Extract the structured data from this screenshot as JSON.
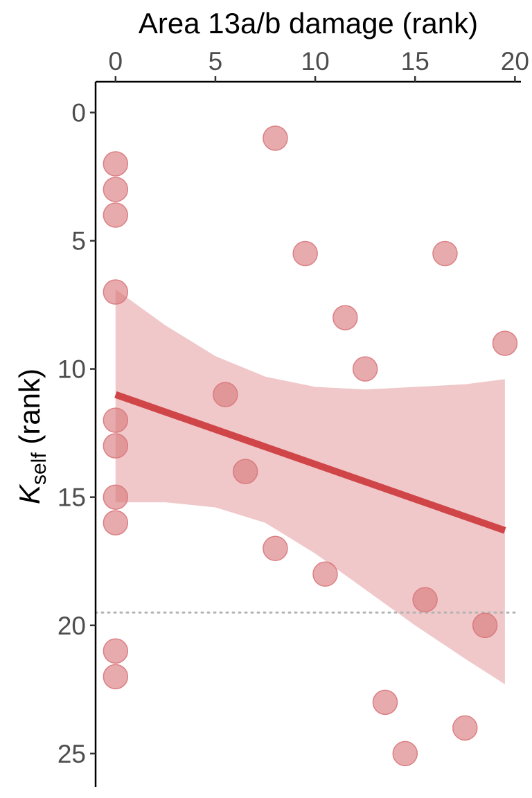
{
  "chart_data": {
    "type": "scatter",
    "title": "",
    "xlabel": "Area 13a/b damage (rank)",
    "ylabel_main": "K",
    "ylabel_sub": "self",
    "ylabel_suffix": " (rank)",
    "x_axis_position": "top",
    "y_axis_reversed": true,
    "xlim": [
      -1,
      20.3
    ],
    "ylim": [
      -1.2,
      26.3
    ],
    "x_ticks": [
      0,
      5,
      10,
      15,
      20
    ],
    "y_ticks": [
      0,
      5,
      10,
      15,
      20,
      25
    ],
    "grid": false,
    "colors": {
      "point": "#d9777b",
      "fit_line": "#cf4548",
      "band": "#f0c8c9",
      "reference_line": "#b3b3b3"
    },
    "points": [
      {
        "x": 0,
        "y": 2
      },
      {
        "x": 0,
        "y": 3
      },
      {
        "x": 0,
        "y": 4
      },
      {
        "x": 0,
        "y": 7
      },
      {
        "x": 0,
        "y": 12
      },
      {
        "x": 0,
        "y": 13
      },
      {
        "x": 0,
        "y": 15
      },
      {
        "x": 0,
        "y": 16
      },
      {
        "x": 0,
        "y": 21
      },
      {
        "x": 0,
        "y": 22
      },
      {
        "x": 5.5,
        "y": 11
      },
      {
        "x": 6.5,
        "y": 14
      },
      {
        "x": 8,
        "y": 1
      },
      {
        "x": 8,
        "y": 17
      },
      {
        "x": 9.5,
        "y": 5.5
      },
      {
        "x": 10.5,
        "y": 18
      },
      {
        "x": 11.5,
        "y": 8
      },
      {
        "x": 12.5,
        "y": 10
      },
      {
        "x": 13.5,
        "y": 23
      },
      {
        "x": 14.5,
        "y": 25
      },
      {
        "x": 15.5,
        "y": 19
      },
      {
        "x": 16.5,
        "y": 5.5
      },
      {
        "x": 17.5,
        "y": 24
      },
      {
        "x": 18.5,
        "y": 20
      },
      {
        "x": 19.5,
        "y": 9
      }
    ],
    "fit_line": {
      "x": [
        0,
        19.5
      ],
      "y": [
        11,
        16.3
      ]
    },
    "confidence_band": {
      "x": [
        0,
        2.5,
        5,
        7.5,
        10,
        12.5,
        15,
        17.5,
        19.5
      ],
      "lower": [
        6.9,
        8.3,
        9.5,
        10.3,
        10.7,
        10.8,
        10.7,
        10.6,
        10.4
      ],
      "upper": [
        15.2,
        15.2,
        15.4,
        16.0,
        17.2,
        18.6,
        20.0,
        21.3,
        22.3
      ]
    },
    "reference_line": {
      "y": 19.5,
      "style": "dotted"
    }
  }
}
